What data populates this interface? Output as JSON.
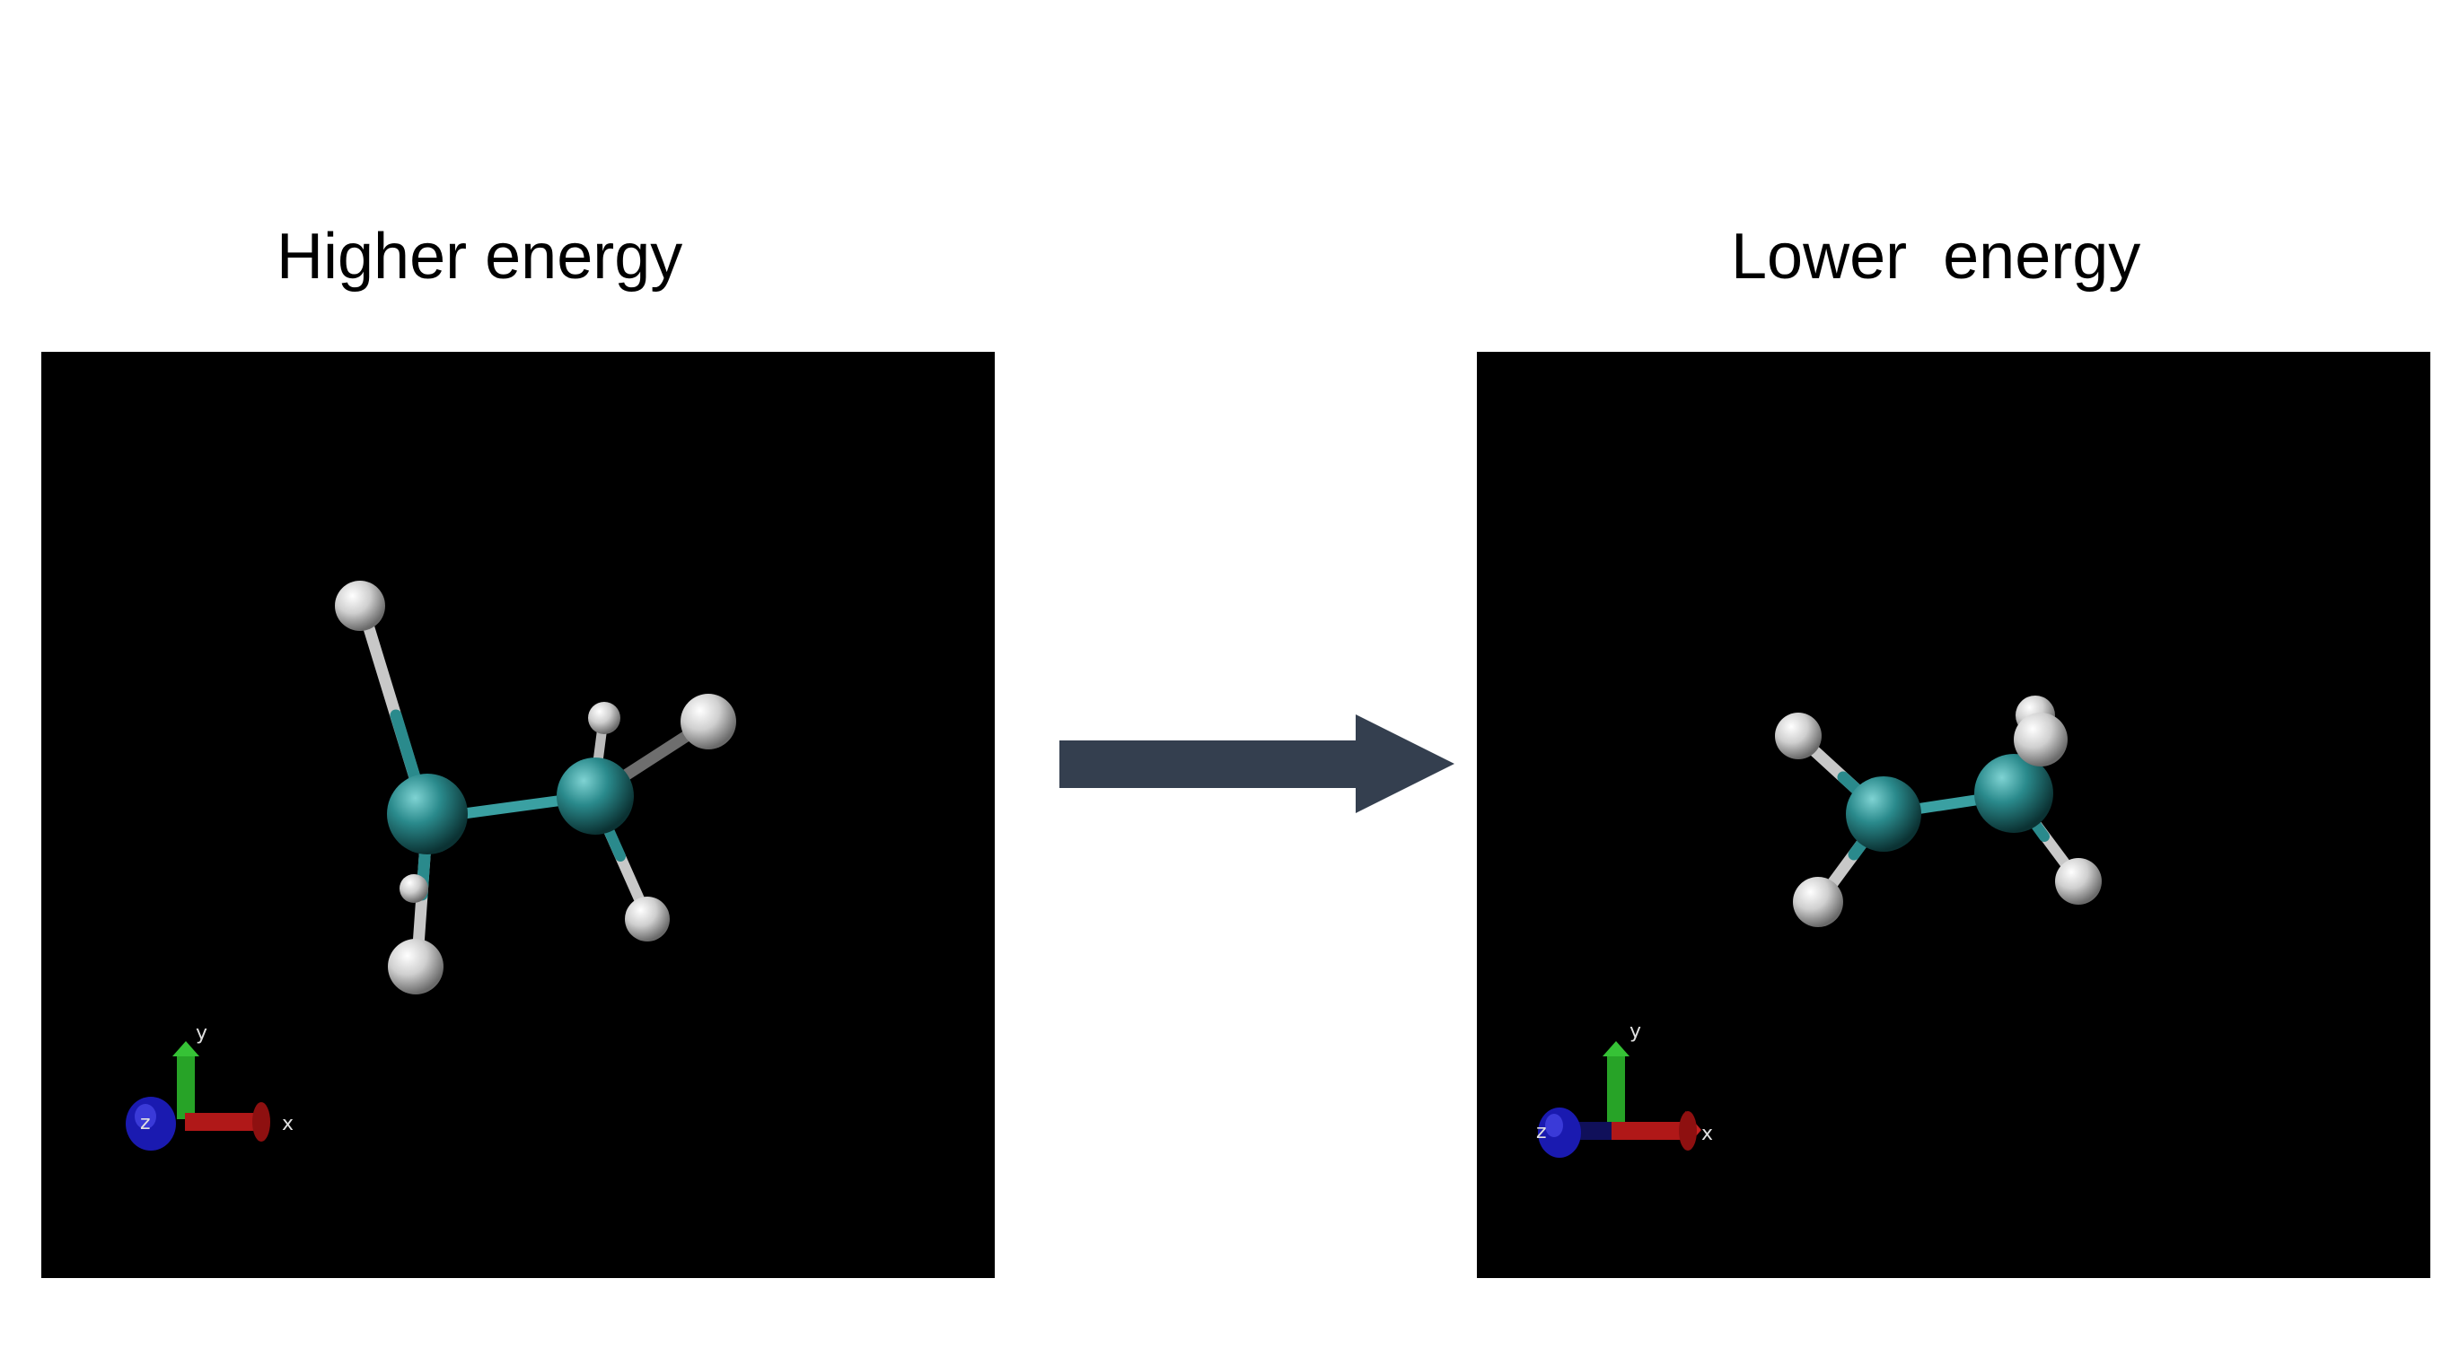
{
  "titles": {
    "left": "Higher energy",
    "right": "Lower  energy"
  },
  "viewports": {
    "left": {
      "description_role": "molecule-render",
      "axes": {
        "x": "x",
        "y": "y",
        "z": "z"
      }
    },
    "right": {
      "description_role": "molecule-render",
      "axes": {
        "x": "x",
        "y": "y",
        "z": "z"
      }
    }
  },
  "colors": {
    "carbon": "#2a8a8c",
    "hydrogen": "#d9d9d9",
    "background": "#000000",
    "arrow": "#343f4f",
    "axis_x": "#b01818",
    "axis_y": "#27a327",
    "axis_z": "#1a1ab0"
  },
  "icons": {
    "arrow": "right-arrow-icon"
  }
}
